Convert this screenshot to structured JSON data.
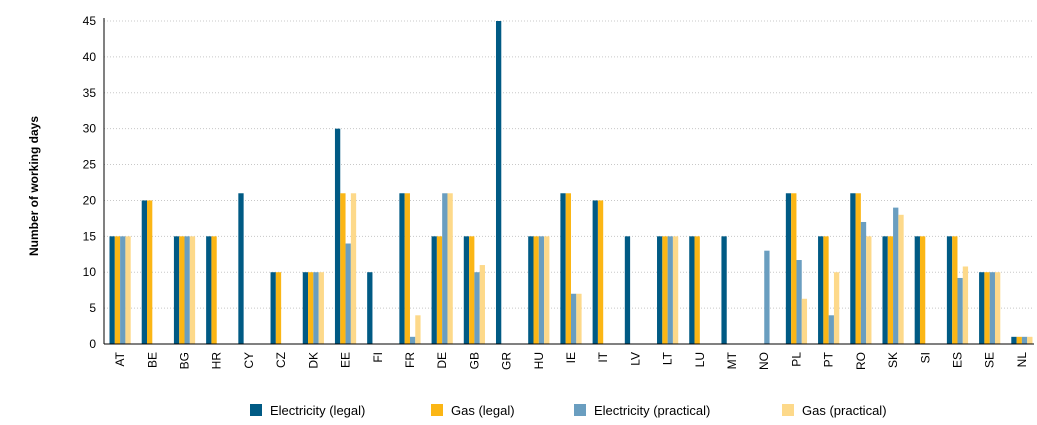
{
  "chart_data": {
    "type": "bar",
    "ylabel": "Number of working days",
    "xlabel": "",
    "ylim": [
      0,
      45
    ],
    "yticks": [
      0,
      5,
      10,
      15,
      20,
      25,
      30,
      35,
      40,
      45
    ],
    "grid": true,
    "legend_position": "bottom",
    "categories": [
      "AT",
      "BE",
      "BG",
      "HR",
      "CY",
      "CZ",
      "DK",
      "EE",
      "FI",
      "FR",
      "DE",
      "GB",
      "GR",
      "HU",
      "IE",
      "IT",
      "LV",
      "LT",
      "LU",
      "MT",
      "NO",
      "PL",
      "PT",
      "RO",
      "SK",
      "SI",
      "ES",
      "SE",
      "NL"
    ],
    "series": [
      {
        "name": "Electricity (legal)",
        "color": "#005a84",
        "values": [
          15,
          20,
          15,
          15,
          21,
          10,
          10,
          30,
          10,
          21,
          15,
          15,
          45,
          15,
          21,
          20,
          15,
          15,
          15,
          15,
          null,
          21,
          15,
          21,
          15,
          15,
          15,
          10,
          1
        ]
      },
      {
        "name": "Gas (legal)",
        "color": "#fbb615",
        "values": [
          15,
          20,
          15,
          15,
          null,
          10,
          10,
          21,
          null,
          21,
          15,
          15,
          null,
          15,
          21,
          20,
          null,
          15,
          15,
          null,
          null,
          21,
          15,
          21,
          15,
          15,
          15,
          10,
          1
        ]
      },
      {
        "name": "Electricity (practical)",
        "color": "#6a9ec0",
        "values": [
          15,
          null,
          15,
          null,
          null,
          null,
          10,
          14,
          null,
          1,
          21,
          10,
          null,
          15,
          7,
          null,
          null,
          15,
          null,
          null,
          13,
          11.7,
          4,
          17,
          19,
          null,
          9.2,
          10,
          1
        ]
      },
      {
        "name": "Gas (practical)",
        "color": "#fdd98a",
        "values": [
          15,
          null,
          15,
          null,
          null,
          null,
          10,
          21,
          null,
          4,
          21,
          11,
          null,
          15,
          7,
          null,
          null,
          15,
          null,
          null,
          null,
          6.3,
          10,
          15,
          18,
          null,
          10.8,
          10,
          1
        ]
      }
    ]
  }
}
